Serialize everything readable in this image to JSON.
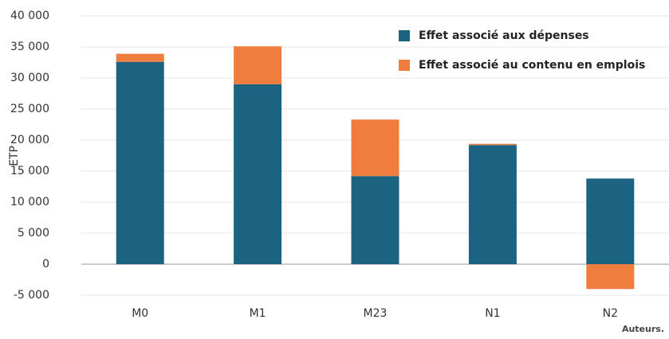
{
  "chart_data": {
    "type": "bar",
    "stacked": true,
    "y_label": "ETP",
    "source": "Auteurs.",
    "categories": [
      "M0",
      "M1",
      "M23",
      "N1",
      "N2"
    ],
    "series": [
      {
        "name": "Effet associé aux dépenses",
        "color": "#1b6380",
        "values": [
          32600,
          29000,
          14200,
          19200,
          13800
        ]
      },
      {
        "name": "Effet associé au contenu en emplois",
        "color": "#ef7d3d",
        "values": [
          1300,
          6100,
          9100,
          200,
          -4000
        ]
      }
    ],
    "ylim": [
      -5000,
      40000
    ],
    "yticks": [
      {
        "value": -5000,
        "label": "-5 000"
      },
      0,
      {
        "value": 5000,
        "label": "5 000"
      },
      {
        "value": 10000,
        "label": "10 000"
      },
      {
        "value": 15000,
        "label": "15 000"
      },
      {
        "value": 20000,
        "label": "20 000"
      },
      {
        "value": 25000,
        "label": "25 000"
      },
      {
        "value": 30000,
        "label": "30 000"
      },
      {
        "value": 35000,
        "label": "35 000"
      },
      {
        "value": 40000,
        "label": "40 000"
      }
    ],
    "grid": true
  }
}
